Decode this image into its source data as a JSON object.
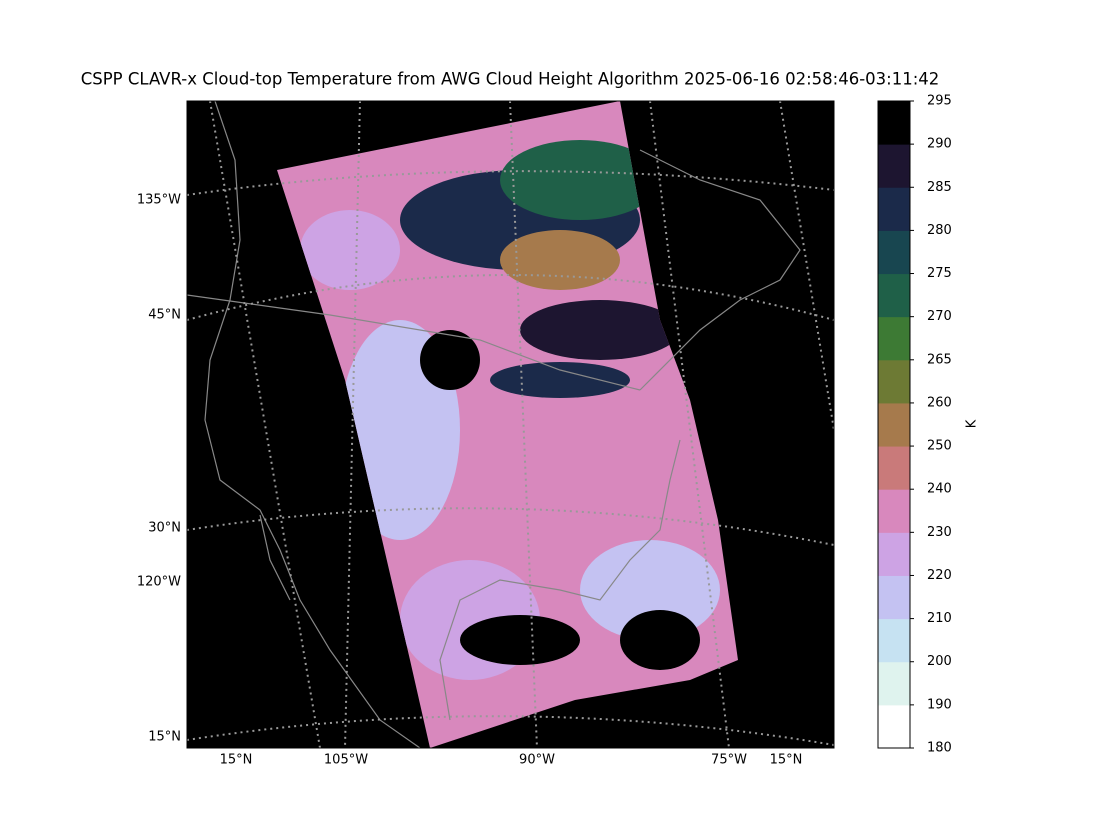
{
  "title": "CSPP CLAVR-x Cloud-top Temperature from AWG Cloud Height Algorithm 2025-06-16 02:58:46-03:11:42",
  "map": {
    "left_labels": [
      "135°W",
      "45°N",
      "30°N",
      "120°W",
      "15°N"
    ],
    "bottom_labels": [
      "15°N",
      "105°W",
      "90°W",
      "75°W",
      "15°N"
    ]
  },
  "colorbar": {
    "label": "K",
    "ticks": [
      180,
      190,
      200,
      210,
      220,
      230,
      240,
      250,
      260,
      265,
      270,
      275,
      280,
      285,
      290,
      295
    ],
    "colors": [
      "#ffffff",
      "#dff3ee",
      "#c6e2f2",
      "#c4c2f2",
      "#cda3e4",
      "#d888bd",
      "#c97a7a",
      "#a67a4c",
      "#6d7a34",
      "#3d7a34",
      "#1f6048",
      "#184650",
      "#1b2a4a",
      "#1d1530",
      "#000000"
    ]
  }
}
